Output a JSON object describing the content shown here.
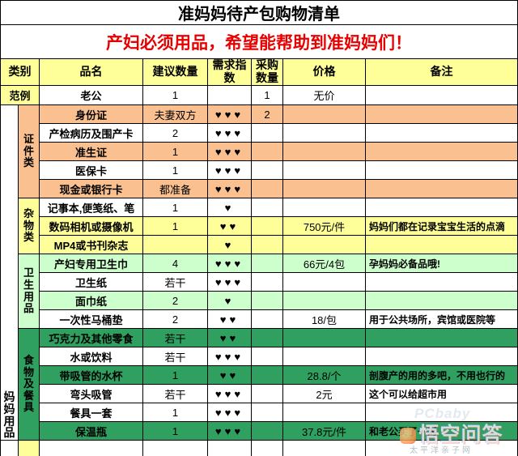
{
  "title": "准妈妈待产包购物清单",
  "subtitle": "产妇必须用品，希望能帮助到准妈妈们！",
  "headers": {
    "category": "类别",
    "name": "品名",
    "suggested_qty": "建议数量",
    "demand_index": "需求指数",
    "purchase_qty": "采购数量",
    "price": "价格",
    "note": "备注"
  },
  "example": {
    "category": "范例",
    "name": "老公",
    "qty": "1",
    "hearts": 0,
    "purchase": "1",
    "price": "无价",
    "note": ""
  },
  "left_label": "妈妈用品",
  "colors": {
    "header_yellow": "#ffff99",
    "orange": "#fac090",
    "yellow": "#ffff99",
    "light_green": "#ccffcc",
    "dark_green": "#2fa05f",
    "subtitle_red": "#e60000"
  },
  "sections": [
    {
      "label": "证件类",
      "bg": "#fac090",
      "rows": [
        {
          "name": "身份证",
          "bg": "#fac090",
          "qty": "夫妻双方",
          "hearts": 3,
          "purchase": "2",
          "price": "",
          "note": ""
        },
        {
          "name": "产检病历及围产卡",
          "bg": "#ffffff",
          "qty": "2",
          "hearts": 3,
          "purchase": "",
          "price": "",
          "note": ""
        },
        {
          "name": "准生证",
          "bg": "#fac090",
          "qty": "1",
          "hearts": 3,
          "purchase": "",
          "price": "",
          "note": ""
        },
        {
          "name": "医保卡",
          "bg": "#ffffff",
          "qty": "1",
          "hearts": 3,
          "purchase": "",
          "price": "",
          "note": ""
        },
        {
          "name": "现金或银行卡",
          "bg": "#fac090",
          "qty": "都准备",
          "hearts": 3,
          "purchase": "",
          "price": "",
          "note": ""
        }
      ]
    },
    {
      "label": "杂物类",
      "bg": "#ffff99",
      "rows": [
        {
          "name": "记事本,便笺纸、笔",
          "bg": "#ffffff",
          "qty": "1",
          "hearts": 1,
          "purchase": "",
          "price": "",
          "note": ""
        },
        {
          "name": "数码相机或摄像机",
          "bg": "#ffff99",
          "qty": "1",
          "hearts": 2,
          "purchase": "",
          "price": "750元/件",
          "note": "妈妈们都在记录宝宝生活的点滴"
        },
        {
          "name": "MP4或书刊杂志",
          "bg": "#ffff99",
          "qty": "",
          "hearts": 1,
          "purchase": "",
          "price": "",
          "note": ""
        }
      ]
    },
    {
      "label": "卫生用品",
      "bg": "#ccffcc",
      "rows": [
        {
          "name": "产妇专用卫生巾",
          "bg": "#ccffcc",
          "qty": "4",
          "hearts": 3,
          "purchase": "",
          "price": "66元/4包",
          "note": "孕妈妈必备品哦!"
        },
        {
          "name": "卫生纸",
          "bg": "#ffffff",
          "qty": "若干",
          "hearts": 3,
          "purchase": "",
          "price": "",
          "note": ""
        },
        {
          "name": "面巾纸",
          "bg": "#ccffcc",
          "qty": "2",
          "hearts": 1,
          "purchase": "",
          "price": "",
          "note": ""
        },
        {
          "name": "一次性马桶垫",
          "bg": "#ffffff",
          "qty": "2",
          "hearts": 2,
          "purchase": "",
          "price": "18/包",
          "note": "用于公共场所，宾馆或医院等"
        }
      ]
    },
    {
      "label": "食物及餐具",
      "bg": "#2fa05f",
      "rows": [
        {
          "name": "巧克力及其他零食",
          "bg": "#2fa05f",
          "qty": "若干",
          "hearts": 2,
          "purchase": "",
          "price": "",
          "note": ""
        },
        {
          "name": "水或饮料",
          "bg": "#ffffff",
          "qty": "若干",
          "hearts": 3,
          "purchase": "",
          "price": "",
          "note": ""
        },
        {
          "name": "带吸管的水杯",
          "bg": "#2fa05f",
          "qty": "1",
          "hearts": 2,
          "purchase": "",
          "price": "28.8/个",
          "note": "剖腹产的用的多吧，不用也行的"
        },
        {
          "name": "弯头吸管",
          "bg": "#ffffff",
          "qty": "若干",
          "hearts": 3,
          "purchase": "",
          "price": "2元",
          "note": "这个可以给超市用"
        },
        {
          "name": "餐具一套",
          "bg": "#ffffff",
          "qty": "1",
          "hearts": 3,
          "purchase": "",
          "price": "",
          "note": ""
        },
        {
          "name": "保温瓶",
          "bg": "#2fa05f",
          "qty": "1",
          "hearts": 3,
          "purchase": "",
          "price": "37.8元/件",
          "note": "和老公买了一对"
        }
      ]
    },
    {
      "label": "",
      "bg": "#ffff99",
      "rows": [
        {
          "name": "",
          "bg": "#ffffff",
          "qty": "",
          "hearts": 0,
          "purchase": "",
          "price": "",
          "note": ""
        }
      ]
    }
  ],
  "watermark": {
    "brand": "PCbaby",
    "logo_text": "悟空问答",
    "site": "太平洋亲子网"
  }
}
